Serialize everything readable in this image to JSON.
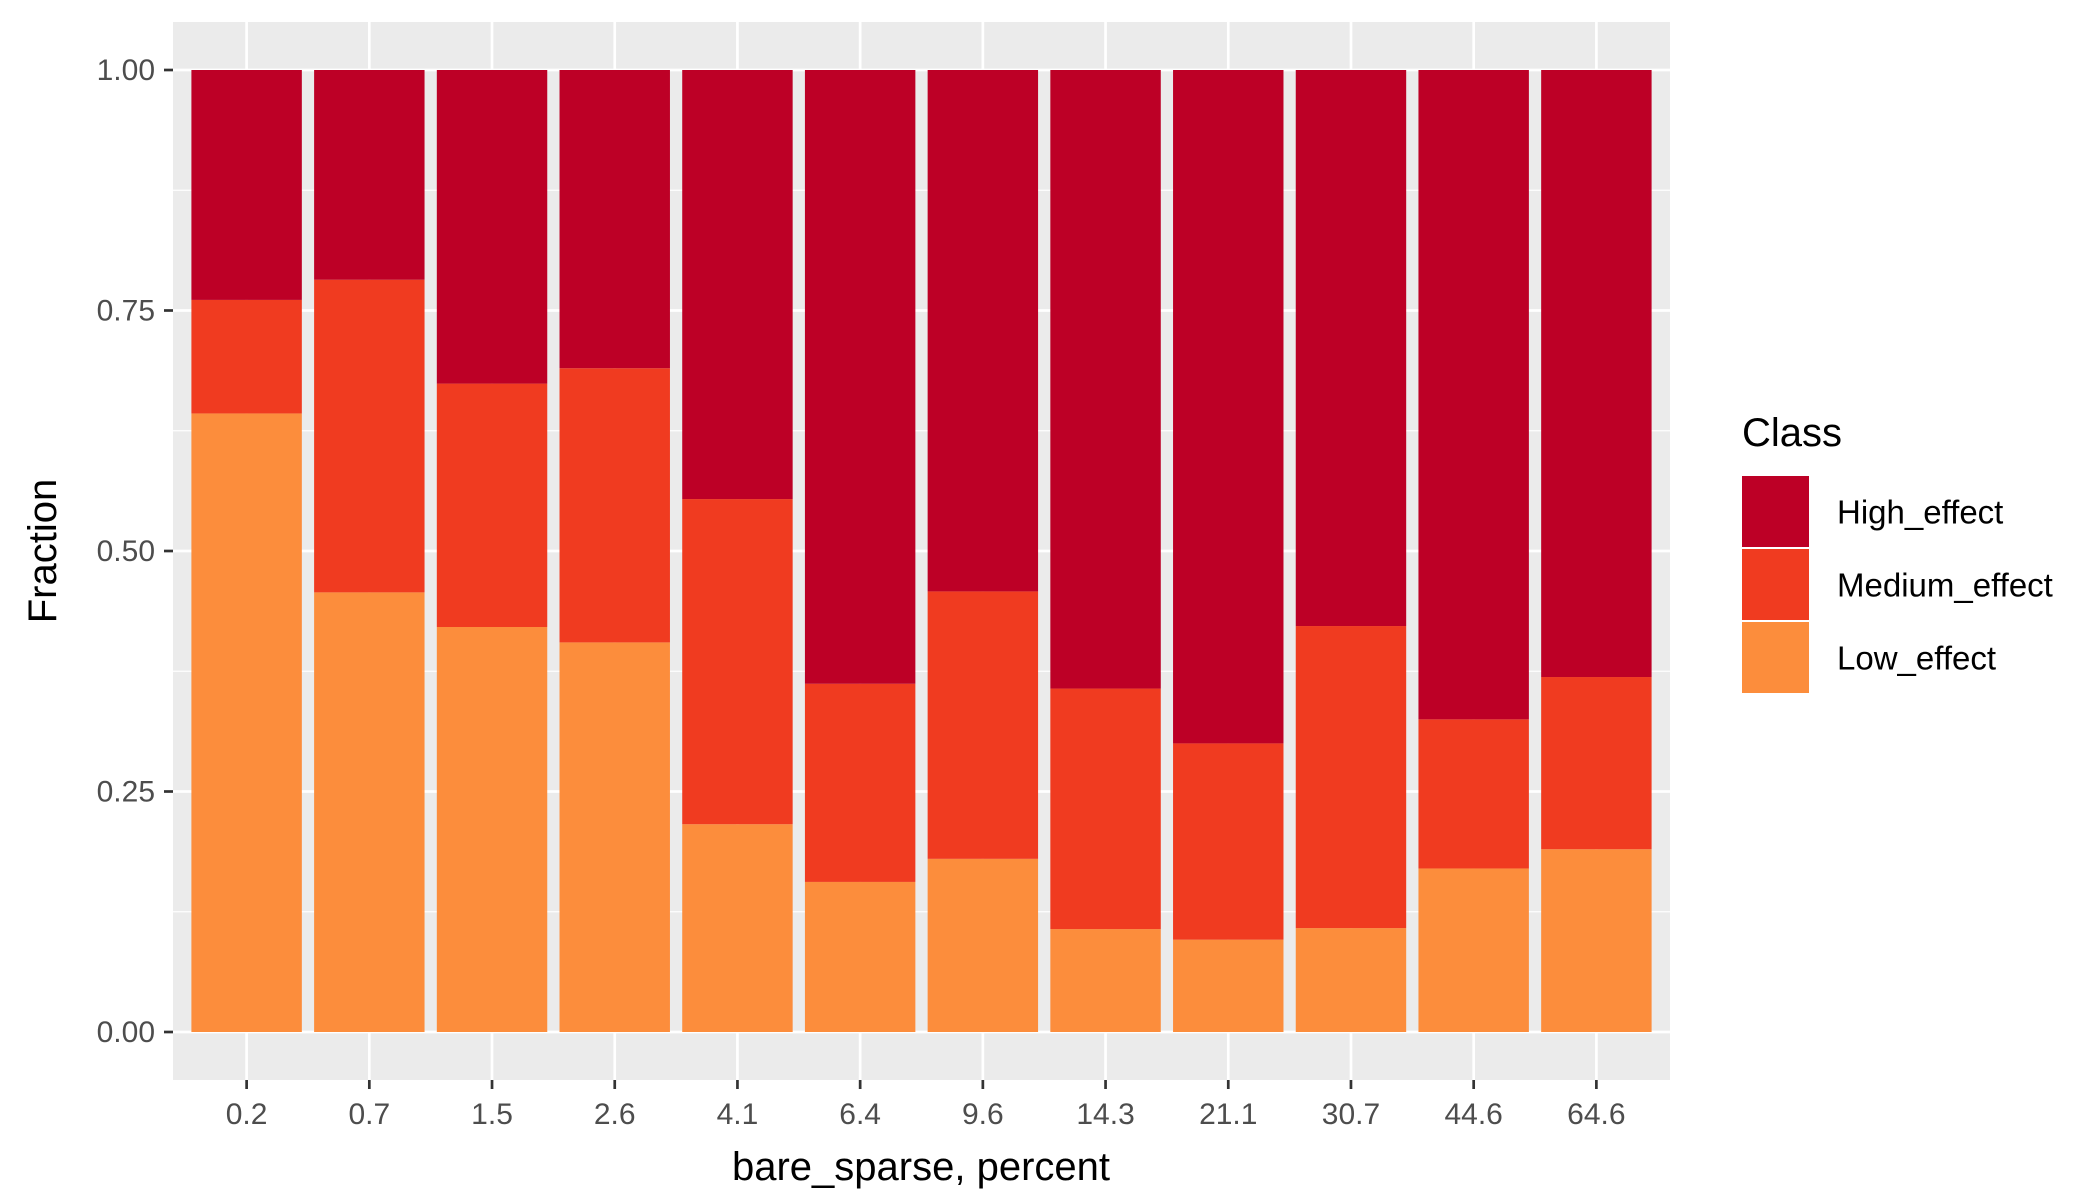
{
  "chart_data": {
    "type": "bar",
    "stacked": true,
    "xlabel": "bare_sparse, percent",
    "ylabel": "Fraction",
    "ylim": [
      0,
      1
    ],
    "yticks": [
      "0.00",
      "0.25",
      "0.50",
      "0.75",
      "1.00"
    ],
    "categories": [
      "0.2",
      "0.7",
      "1.5",
      "2.6",
      "4.1",
      "6.4",
      "9.6",
      "14.3",
      "21.1",
      "30.7",
      "44.6",
      "64.6"
    ],
    "series": [
      {
        "name": "Low_effect",
        "color": "#fc8d3c",
        "values": [
          0.643,
          0.457,
          0.421,
          0.405,
          0.216,
          0.156,
          0.18,
          0.107,
          0.096,
          0.108,
          0.17,
          0.19
        ]
      },
      {
        "name": "Medium_effect",
        "color": "#f03b20",
        "values": [
          0.118,
          0.325,
          0.253,
          0.285,
          0.338,
          0.206,
          0.278,
          0.25,
          0.204,
          0.314,
          0.155,
          0.179
        ]
      },
      {
        "name": "High_effect",
        "color": "#bd0026",
        "values": [
          0.239,
          0.218,
          0.326,
          0.31,
          0.446,
          0.638,
          0.542,
          0.643,
          0.7,
          0.578,
          0.675,
          0.631
        ]
      }
    ],
    "grid": true,
    "legend": {
      "title": "Class",
      "position": "right",
      "order": [
        "High_effect",
        "Medium_effect",
        "Low_effect"
      ]
    }
  }
}
